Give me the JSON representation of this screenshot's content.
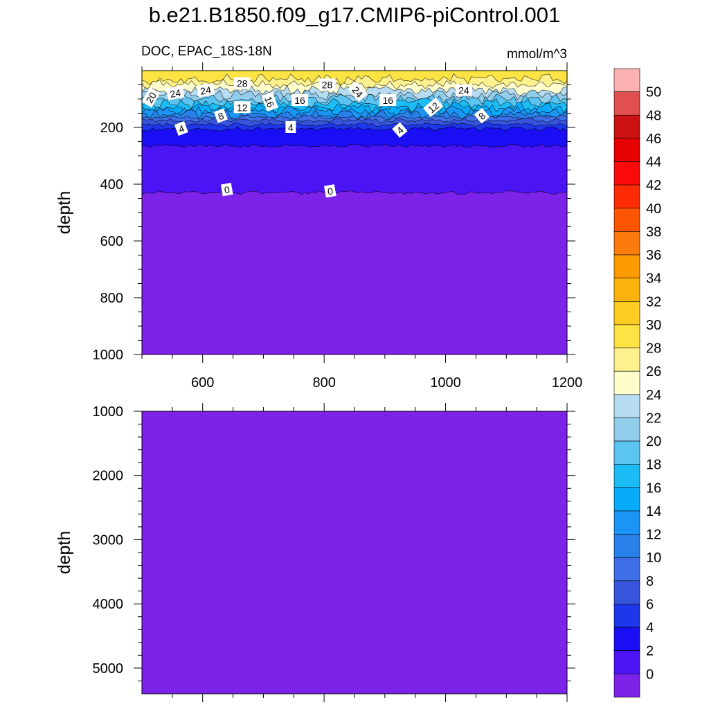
{
  "figure": {
    "title": "b.e21.B1850.f09_g17.CMIP6-piControl.001",
    "subtitle": "DOC, EPAC_18S-18N",
    "units": "mmol/m^3"
  },
  "colors": {
    "levels": [
      {
        "min": null,
        "max": 0,
        "color": "#7d22e8"
      },
      {
        "min": 0,
        "max": 2,
        "color": "#4a14f4"
      },
      {
        "min": 2,
        "max": 4,
        "color": "#1a0ef5"
      },
      {
        "min": 4,
        "max": 6,
        "color": "#1d37ea"
      },
      {
        "min": 6,
        "max": 8,
        "color": "#3854dc"
      },
      {
        "min": 8,
        "max": 10,
        "color": "#3f6fe6"
      },
      {
        "min": 10,
        "max": 12,
        "color": "#2880e8"
      },
      {
        "min": 12,
        "max": 14,
        "color": "#1a95f6"
      },
      {
        "min": 14,
        "max": 16,
        "color": "#08abf9"
      },
      {
        "min": 16,
        "max": 18,
        "color": "#1cbdf6"
      },
      {
        "min": 18,
        "max": 20,
        "color": "#5bc4f0"
      },
      {
        "min": 20,
        "max": 22,
        "color": "#93cdec"
      },
      {
        "min": 22,
        "max": 24,
        "color": "#b7dcf2"
      },
      {
        "min": 24,
        "max": 26,
        "color": "#fefecd"
      },
      {
        "min": 26,
        "max": 28,
        "color": "#fdf18f"
      },
      {
        "min": 28,
        "max": 30,
        "color": "#fde444"
      },
      {
        "min": 30,
        "max": 32,
        "color": "#fdcc22"
      },
      {
        "min": 32,
        "max": 34,
        "color": "#fcb30d"
      },
      {
        "min": 34,
        "max": 36,
        "color": "#fd9a02"
      },
      {
        "min": 36,
        "max": 38,
        "color": "#fd7a0c"
      },
      {
        "min": 38,
        "max": 40,
        "color": "#fd5502"
      },
      {
        "min": 40,
        "max": 42,
        "color": "#fe2c04"
      },
      {
        "min": 42,
        "max": 44,
        "color": "#fc0b0b"
      },
      {
        "min": 44,
        "max": 46,
        "color": "#e60202"
      },
      {
        "min": 46,
        "max": 48,
        "color": "#cb1111"
      },
      {
        "min": 48,
        "max": 50,
        "color": "#e24f4f"
      },
      {
        "min": 50,
        "max": null,
        "color": "#fdb2b2"
      }
    ],
    "colorbar_labels": [
      "50",
      "48",
      "46",
      "44",
      "42",
      "40",
      "38",
      "36",
      "34",
      "32",
      "30",
      "28",
      "26",
      "24",
      "22",
      "20",
      "18",
      "16",
      "14",
      "12",
      "10",
      "8",
      "6",
      "4",
      "2",
      "0"
    ]
  },
  "chart_data": [
    {
      "type": "heatmap",
      "title": "DOC, EPAC_18S-18N",
      "units": "mmol/m^3",
      "xlabel": "",
      "ylabel": "depth",
      "xlim": [
        500,
        1200
      ],
      "ylim": [
        1000,
        0
      ],
      "xticks": [
        600,
        800,
        1000,
        1200
      ],
      "yticks": [
        200,
        400,
        600,
        800,
        1000
      ],
      "grid": false,
      "profile": [
        {
          "level": 28,
          "depth": 30
        },
        {
          "level": 26,
          "depth": 50
        },
        {
          "level": 24,
          "depth": 70
        },
        {
          "level": 22,
          "depth": 85
        },
        {
          "level": 20,
          "depth": 100
        },
        {
          "level": 18,
          "depth": 115
        },
        {
          "level": 16,
          "depth": 130
        },
        {
          "level": 14,
          "depth": 142
        },
        {
          "level": 12,
          "depth": 155
        },
        {
          "level": 10,
          "depth": 165
        },
        {
          "level": 8,
          "depth": 175
        },
        {
          "level": 6,
          "depth": 190
        },
        {
          "level": 4,
          "depth": 205
        },
        {
          "level": 2,
          "depth": 265
        },
        {
          "level": 0,
          "depth": 430
        }
      ],
      "contour_labels": [
        {
          "text": "20",
          "x": 515,
          "depth": 95,
          "angle": -60
        },
        {
          "text": "24",
          "x": 555,
          "depth": 80,
          "angle": -10
        },
        {
          "text": "24",
          "x": 605,
          "depth": 70,
          "angle": -10
        },
        {
          "text": "28",
          "x": 665,
          "depth": 45,
          "angle": 0
        },
        {
          "text": "16",
          "x": 710,
          "depth": 110,
          "angle": 70
        },
        {
          "text": "16",
          "x": 760,
          "depth": 105,
          "angle": 0
        },
        {
          "text": "12",
          "x": 665,
          "depth": 130,
          "angle": 0
        },
        {
          "text": "8",
          "x": 630,
          "depth": 160,
          "angle": -20
        },
        {
          "text": "4",
          "x": 565,
          "depth": 205,
          "angle": -20
        },
        {
          "text": "4",
          "x": 745,
          "depth": 200,
          "angle": 0
        },
        {
          "text": "28",
          "x": 805,
          "depth": 50,
          "angle": 0
        },
        {
          "text": "24",
          "x": 855,
          "depth": 75,
          "angle": 50
        },
        {
          "text": "16",
          "x": 905,
          "depth": 105,
          "angle": 0
        },
        {
          "text": "12",
          "x": 980,
          "depth": 130,
          "angle": -40
        },
        {
          "text": "4",
          "x": 925,
          "depth": 210,
          "angle": -40
        },
        {
          "text": "24",
          "x": 1030,
          "depth": 70,
          "angle": 0
        },
        {
          "text": "8",
          "x": 1060,
          "depth": 160,
          "angle": -40
        },
        {
          "text": "0",
          "x": 640,
          "depth": 420,
          "angle": -10
        },
        {
          "text": "0",
          "x": 810,
          "depth": 425,
          "angle": -10
        }
      ]
    },
    {
      "type": "heatmap",
      "title": "",
      "xlabel": "",
      "ylabel": "depth",
      "xlim": [
        500,
        1200
      ],
      "ylim": [
        5400,
        1000
      ],
      "yticks": [
        1000,
        2000,
        3000,
        4000,
        5000
      ],
      "grid": false,
      "uniform_level": "0"
    }
  ]
}
